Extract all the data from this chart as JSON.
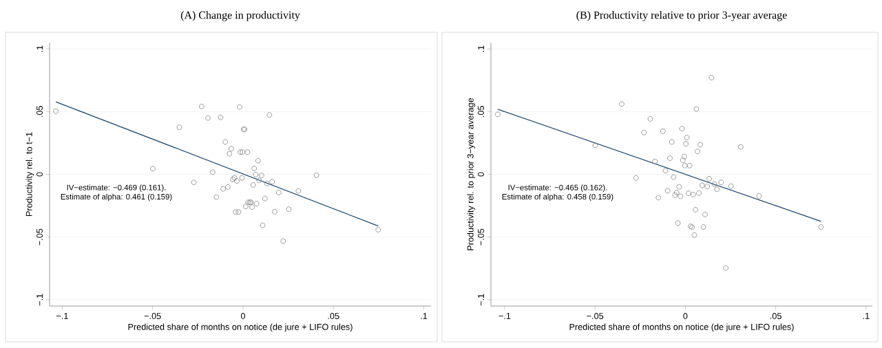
{
  "chart_data": [
    {
      "type": "scatter",
      "title": "(A) Change in productivity",
      "xlabel": "Predicted share of months on notice (de jure + LIFO rules)",
      "ylabel": "Productivity rel. to t−1",
      "xlim": [
        -0.107,
        0.104
      ],
      "ylim": [
        -0.105,
        0.105
      ],
      "xticks": [
        {
          "value": -0.1,
          "label": "−.1"
        },
        {
          "value": -0.05,
          "label": "−.05"
        },
        {
          "value": 0,
          "label": "0"
        },
        {
          "value": 0.05,
          "label": ".05"
        },
        {
          "value": 0.1,
          "label": ".1"
        }
      ],
      "yticks": [
        {
          "value": -0.1,
          "label": "−.1"
        },
        {
          "value": -0.05,
          "label": "−.05"
        },
        {
          "value": 0,
          "label": "0"
        },
        {
          "value": 0.05,
          "label": ".05"
        },
        {
          "value": 0.1,
          "label": ".1"
        }
      ],
      "grid": "y",
      "annotations": [
        "IV−estimate: −0.469 (0.161).",
        "Estimate of alpha: 0.461 (0.159)"
      ],
      "series": [
        {
          "marker": "circle",
          "color": "#808080",
          "x": [
            -0.1035,
            -0.0229,
            -0.0194,
            -0.0124,
            -0.0019,
            -0.0352,
            0.0003,
            0.0009,
            -0.0098,
            -0.0065,
            -0.0075,
            -0.0015,
            -0.0003,
            0.0024,
            -0.0499,
            -0.0168,
            -0.0272,
            -0.0056,
            -0.0047,
            -0.0034,
            -0.0006,
            -0.0084,
            -0.011,
            -0.0147,
            -0.0041,
            -0.0025,
            0.0146,
            0.0083,
            0.0062,
            0.007,
            0.0102,
            0.0089,
            0.0132,
            0.0161,
            0.0056,
            0.0406,
            0.0198,
            0.0306,
            0.0121,
            0.0028,
            0.0038,
            0.0044,
            0.0015,
            0.005,
            0.0075,
            0.0175,
            0.0253,
            0.0109,
            0.0222,
            0.0748
          ],
          "values": [
            0.0504,
            0.0541,
            0.0449,
            0.0454,
            0.0537,
            0.0375,
            0.0359,
            0.0359,
            0.0258,
            0.0204,
            0.0164,
            0.0177,
            0.0177,
            0.0177,
            0.0046,
            0.0017,
            -0.0064,
            -0.004,
            -0.0028,
            -0.0053,
            -0.0028,
            -0.0101,
            -0.0116,
            -0.0182,
            -0.03,
            -0.03,
            0.0473,
            0.0109,
            0.0048,
            -0.0002,
            -0.0009,
            -0.0048,
            -0.0074,
            -0.0059,
            -0.0085,
            -0.0007,
            -0.0144,
            -0.0132,
            -0.0193,
            -0.0223,
            -0.0223,
            -0.0223,
            -0.0256,
            -0.0261,
            -0.0234,
            -0.0298,
            -0.0278,
            -0.0407,
            -0.0532,
            -0.0442
          ]
        },
        {
          "type": "line",
          "color": "#1a476f",
          "x": [
            -0.1035,
            0.0748
          ],
          "values": [
            0.0578,
            -0.0412
          ]
        }
      ]
    },
    {
      "type": "scatter",
      "title": "(B) Productivity relative to prior 3-year average",
      "xlabel": "Predicted share of months on notice (de jure + LIFO rules)",
      "ylabel": "Productivity rel. to prior 3−year average",
      "xlim": [
        -0.1076,
        0.1035
      ],
      "ylim": [
        -0.105,
        0.105
      ],
      "xticks": [
        {
          "value": -0.1,
          "label": "−.1"
        },
        {
          "value": -0.05,
          "label": "−.05"
        },
        {
          "value": 0,
          "label": "0"
        },
        {
          "value": 0.05,
          "label": ".05"
        },
        {
          "value": 0.1,
          "label": ".1"
        }
      ],
      "yticks": [
        {
          "value": -0.1,
          "label": "−.1"
        },
        {
          "value": -0.05,
          "label": "−.05"
        },
        {
          "value": 0,
          "label": "0"
        },
        {
          "value": 0.05,
          "label": ".05"
        },
        {
          "value": 0.1,
          "label": ".1"
        }
      ],
      "grid": "y",
      "annotations": [
        "IV−estimate: −0.465 (0.162).",
        "Estimate of alpha: 0.458 (0.159)"
      ],
      "series": [
        {
          "marker": "circle",
          "color": "#808080",
          "x": [
            -0.1038,
            -0.0352,
            -0.0194,
            -0.0229,
            -0.0124,
            -0.0019,
            -0.0075,
            -0.0499,
            -0.0085,
            -0.0168,
            -0.011,
            -0.0273,
            -0.0065,
            -0.0034,
            -0.0098,
            -0.0048,
            -0.0057,
            -0.0027,
            -0.0149,
            -0.0041,
            0.0145,
            0.0061,
            0.0008,
            0.0003,
            0.0083,
            0.0067,
            0.0307,
            -0.0006,
            -0.0014,
            -0.0003,
            0.0024,
            0.0132,
            0.0093,
            0.0121,
            0.0161,
            0.0175,
            0.0198,
            0.0253,
            0.0408,
            0.0017,
            0.0043,
            0.0075,
            0.0056,
            0.0109,
            0.0029,
            0.0037,
            0.01,
            0.005,
            0.0224,
            0.0751
          ],
          "values": [
            0.0478,
            0.0561,
            0.0442,
            0.0333,
            0.0344,
            0.0364,
            0.0258,
            0.0232,
            0.0129,
            0.0103,
            0.0029,
            -0.0029,
            -0.0022,
            -0.0099,
            -0.0131,
            -0.0145,
            -0.0166,
            -0.0175,
            -0.0186,
            -0.0388,
            0.0771,
            0.0521,
            0.0293,
            0.0243,
            0.0237,
            0.0182,
            0.0219,
            0.0142,
            0.0112,
            0.007,
            0.007,
            -0.0035,
            -0.0088,
            -0.0096,
            -0.0077,
            -0.0118,
            -0.0064,
            -0.0094,
            -0.0173,
            -0.0151,
            -0.0162,
            -0.0149,
            -0.0282,
            -0.032,
            -0.0414,
            -0.0421,
            -0.042,
            -0.0484,
            -0.0747,
            -0.042
          ]
        },
        {
          "type": "line",
          "color": "#1a476f",
          "x": [
            -0.1038,
            0.0751
          ],
          "values": [
            0.0519,
            -0.0375
          ]
        }
      ]
    }
  ]
}
